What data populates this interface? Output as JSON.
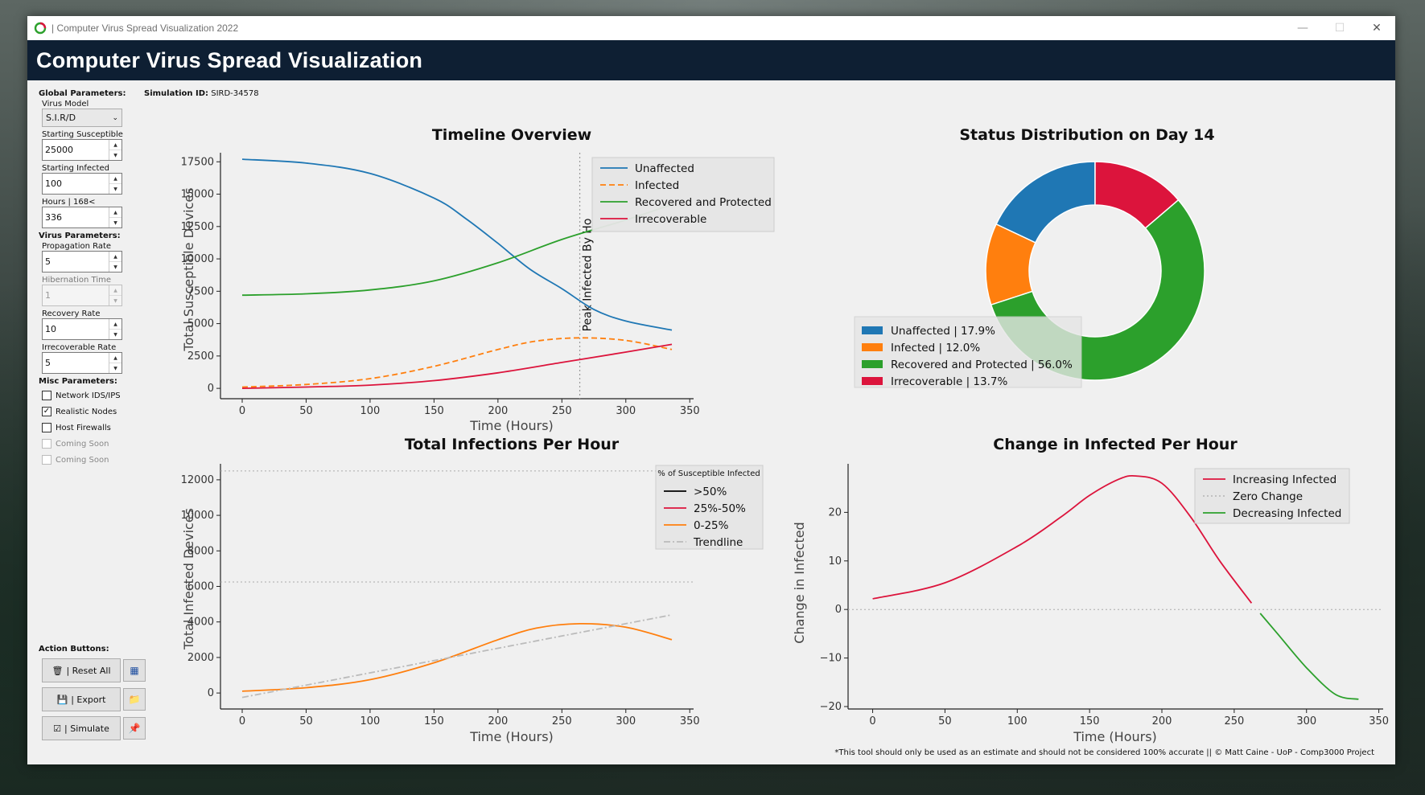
{
  "window": {
    "title": "| Computer Virus Spread Visualization 2022",
    "controls": {
      "minimize": "—",
      "maximize": "☐",
      "close": "✕"
    }
  },
  "header": {
    "title": "Computer Virus Spread Visualization"
  },
  "simulation": {
    "label": "Simulation ID:",
    "value": "SIRD-34578"
  },
  "sidebar": {
    "global_label": "Global Parameters:",
    "virus_model_label": "Virus Model",
    "virus_model_value": "S.I.R/D",
    "starting_susceptible_label": "Starting Susceptible",
    "starting_susceptible_value": "25000",
    "starting_infected_label": "Starting Infected",
    "starting_infected_value": "100",
    "hours_label": "Hours | 168<",
    "hours_value": "336",
    "virus_label": "Virus Parameters:",
    "propagation_label": "Propagation Rate",
    "propagation_value": "5",
    "hibernation_label": "Hibernation Time",
    "hibernation_value": "1",
    "recovery_label": "Recovery Rate",
    "recovery_value": "10",
    "irrecoverable_label": "Irrecoverable Rate",
    "irrecoverable_value": "5",
    "misc_label": "Misc Parameters:",
    "checks": [
      {
        "label": "Network IDS/IPS",
        "checked": false,
        "disabled": false
      },
      {
        "label": "Realistic Nodes",
        "checked": true,
        "disabled": false
      },
      {
        "label": "Host Firewalls",
        "checked": false,
        "disabled": false
      },
      {
        "label": "Coming Soon",
        "checked": false,
        "disabled": true
      },
      {
        "label": "Coming Soon",
        "checked": false,
        "disabled": true
      }
    ]
  },
  "actions": {
    "label": "Action Buttons:",
    "reset": "| Reset All",
    "export": "| Export",
    "simulate": "| Simulate",
    "icons": [
      "trash-icon",
      "calculator-icon",
      "save-icon",
      "folder-icon",
      "checklist-icon",
      "pin-icon"
    ]
  },
  "footer": "*This tool should only be used as an estimate and should not be considered 100% accurate || © Matt Caine - UoP - Comp3000 Project",
  "colors": {
    "unaffected": "#1f77b4",
    "infected": "#ff7f0e",
    "recovered": "#2ca02c",
    "irrecoverable": "#dc143c",
    "header_bg": "#0e1f33"
  },
  "chart_data": [
    {
      "id": "timeline",
      "type": "line",
      "title": "Timeline Overview",
      "xlabel": "Time (Hours)",
      "ylabel": "Total Susceptible Devices",
      "xlim": [
        -17,
        353
      ],
      "ylim": [
        -800,
        18200
      ],
      "xticks": [
        0,
        50,
        100,
        150,
        200,
        250,
        300,
        350
      ],
      "yticks": [
        0,
        2500,
        5000,
        7500,
        10000,
        12500,
        15000,
        17500
      ],
      "legend": "top-right",
      "series": [
        {
          "name": "Unaffected",
          "style": "solid",
          "color": "#1f77b4",
          "x": [
            0,
            50,
            100,
            150,
            175,
            200,
            225,
            250,
            275,
            300,
            336
          ],
          "y": [
            17700,
            17400,
            16600,
            14700,
            13100,
            11200,
            9200,
            7700,
            6100,
            5200,
            4500
          ]
        },
        {
          "name": "Infected",
          "style": "dashed",
          "color": "#ff7f0e",
          "x": [
            0,
            50,
            100,
            150,
            200,
            230,
            264,
            300,
            336
          ],
          "y": [
            100,
            300,
            750,
            1700,
            3000,
            3650,
            3900,
            3700,
            3000
          ]
        },
        {
          "name": "Recovered and Protected",
          "style": "solid",
          "color": "#2ca02c",
          "x": [
            0,
            50,
            100,
            150,
            200,
            250,
            300,
            336
          ],
          "y": [
            7200,
            7300,
            7600,
            8300,
            9700,
            11500,
            13000,
            14200
          ]
        },
        {
          "name": "Irrecoverable",
          "style": "solid",
          "color": "#dc143c",
          "x": [
            0,
            50,
            100,
            150,
            200,
            250,
            300,
            336
          ],
          "y": [
            0,
            100,
            250,
            600,
            1200,
            2000,
            2800,
            3400
          ]
        }
      ],
      "vline": {
        "x": 264,
        "label": "Peak Infected By Ho"
      }
    },
    {
      "id": "donut",
      "type": "pie",
      "title": "Status Distribution on Day 14",
      "legend": "left",
      "slices": [
        {
          "label": "Unaffected | 17.9%",
          "value": 17.9,
          "color": "#1f77b4"
        },
        {
          "label": "Infected | 12.0%",
          "value": 12.0,
          "color": "#ff7f0e"
        },
        {
          "label": "Recovered and Protected | 56.0%",
          "value": 56.0,
          "color": "#2ca02c"
        },
        {
          "label": "Irrecoverable | 13.7%",
          "value": 13.7,
          "color": "#dc143c"
        }
      ]
    },
    {
      "id": "infections",
      "type": "line",
      "title": "Total Infections Per Hour",
      "xlabel": "Time (Hours)",
      "ylabel": "Total Infected Devices",
      "xlim": [
        -17,
        353
      ],
      "ylim": [
        -900,
        12900
      ],
      "xticks": [
        0,
        50,
        100,
        150,
        200,
        250,
        300,
        350
      ],
      "yticks": [
        0,
        2000,
        4000,
        6000,
        8000,
        10000,
        12000
      ],
      "hlines": [
        12500,
        6250
      ],
      "legend_title": "% of Susceptible Infected",
      "legend": "top-right",
      "legend_entries": [
        {
          "name": ">50%",
          "color": "#000000",
          "style": "solid"
        },
        {
          "name": "25%-50%",
          "color": "#dc143c",
          "style": "solid"
        },
        {
          "name": "0-25%",
          "color": "#ff7f0e",
          "style": "solid"
        },
        {
          "name": "Trendline",
          "color": "#bbbbbb",
          "style": "dashdot"
        }
      ],
      "series": [
        {
          "name": "0-25%",
          "color": "#ff7f0e",
          "style": "solid",
          "x": [
            0,
            50,
            100,
            150,
            200,
            230,
            264,
            300,
            336
          ],
          "y": [
            100,
            300,
            750,
            1700,
            3000,
            3650,
            3900,
            3700,
            3000
          ]
        },
        {
          "name": "Trendline",
          "color": "#bbbbbb",
          "style": "dashdot",
          "x": [
            0,
            336
          ],
          "y": [
            -250,
            4400
          ]
        }
      ]
    },
    {
      "id": "change",
      "type": "line",
      "title": "Change in Infected Per Hour",
      "xlabel": "Time (Hours)",
      "ylabel": "Change in Infected",
      "xlim": [
        -17,
        353
      ],
      "ylim": [
        -20.5,
        30
      ],
      "xticks": [
        0,
        50,
        100,
        150,
        200,
        250,
        300,
        350
      ],
      "yticks": [
        -20,
        -10,
        0,
        10,
        20
      ],
      "legend": "top-right",
      "hline": 0,
      "series": [
        {
          "name": "Increasing Infected",
          "color": "#dc143c",
          "style": "solid",
          "x": [
            0,
            50,
            100,
            130,
            150,
            170,
            182,
            200,
            220,
            240,
            262
          ],
          "y": [
            2.2,
            5.5,
            13,
            19,
            23.5,
            26.8,
            27.5,
            26,
            19,
            10,
            1.3
          ]
        },
        {
          "name": "Zero Change",
          "color": "#bbbbbb",
          "style": "dotted",
          "x": [],
          "y": []
        },
        {
          "name": "Decreasing  Infected",
          "color": "#2ca02c",
          "style": "solid",
          "x": [
            268,
            280,
            300,
            320,
            336
          ],
          "y": [
            -0.8,
            -5,
            -12,
            -17.5,
            -18.5
          ]
        }
      ]
    }
  ]
}
